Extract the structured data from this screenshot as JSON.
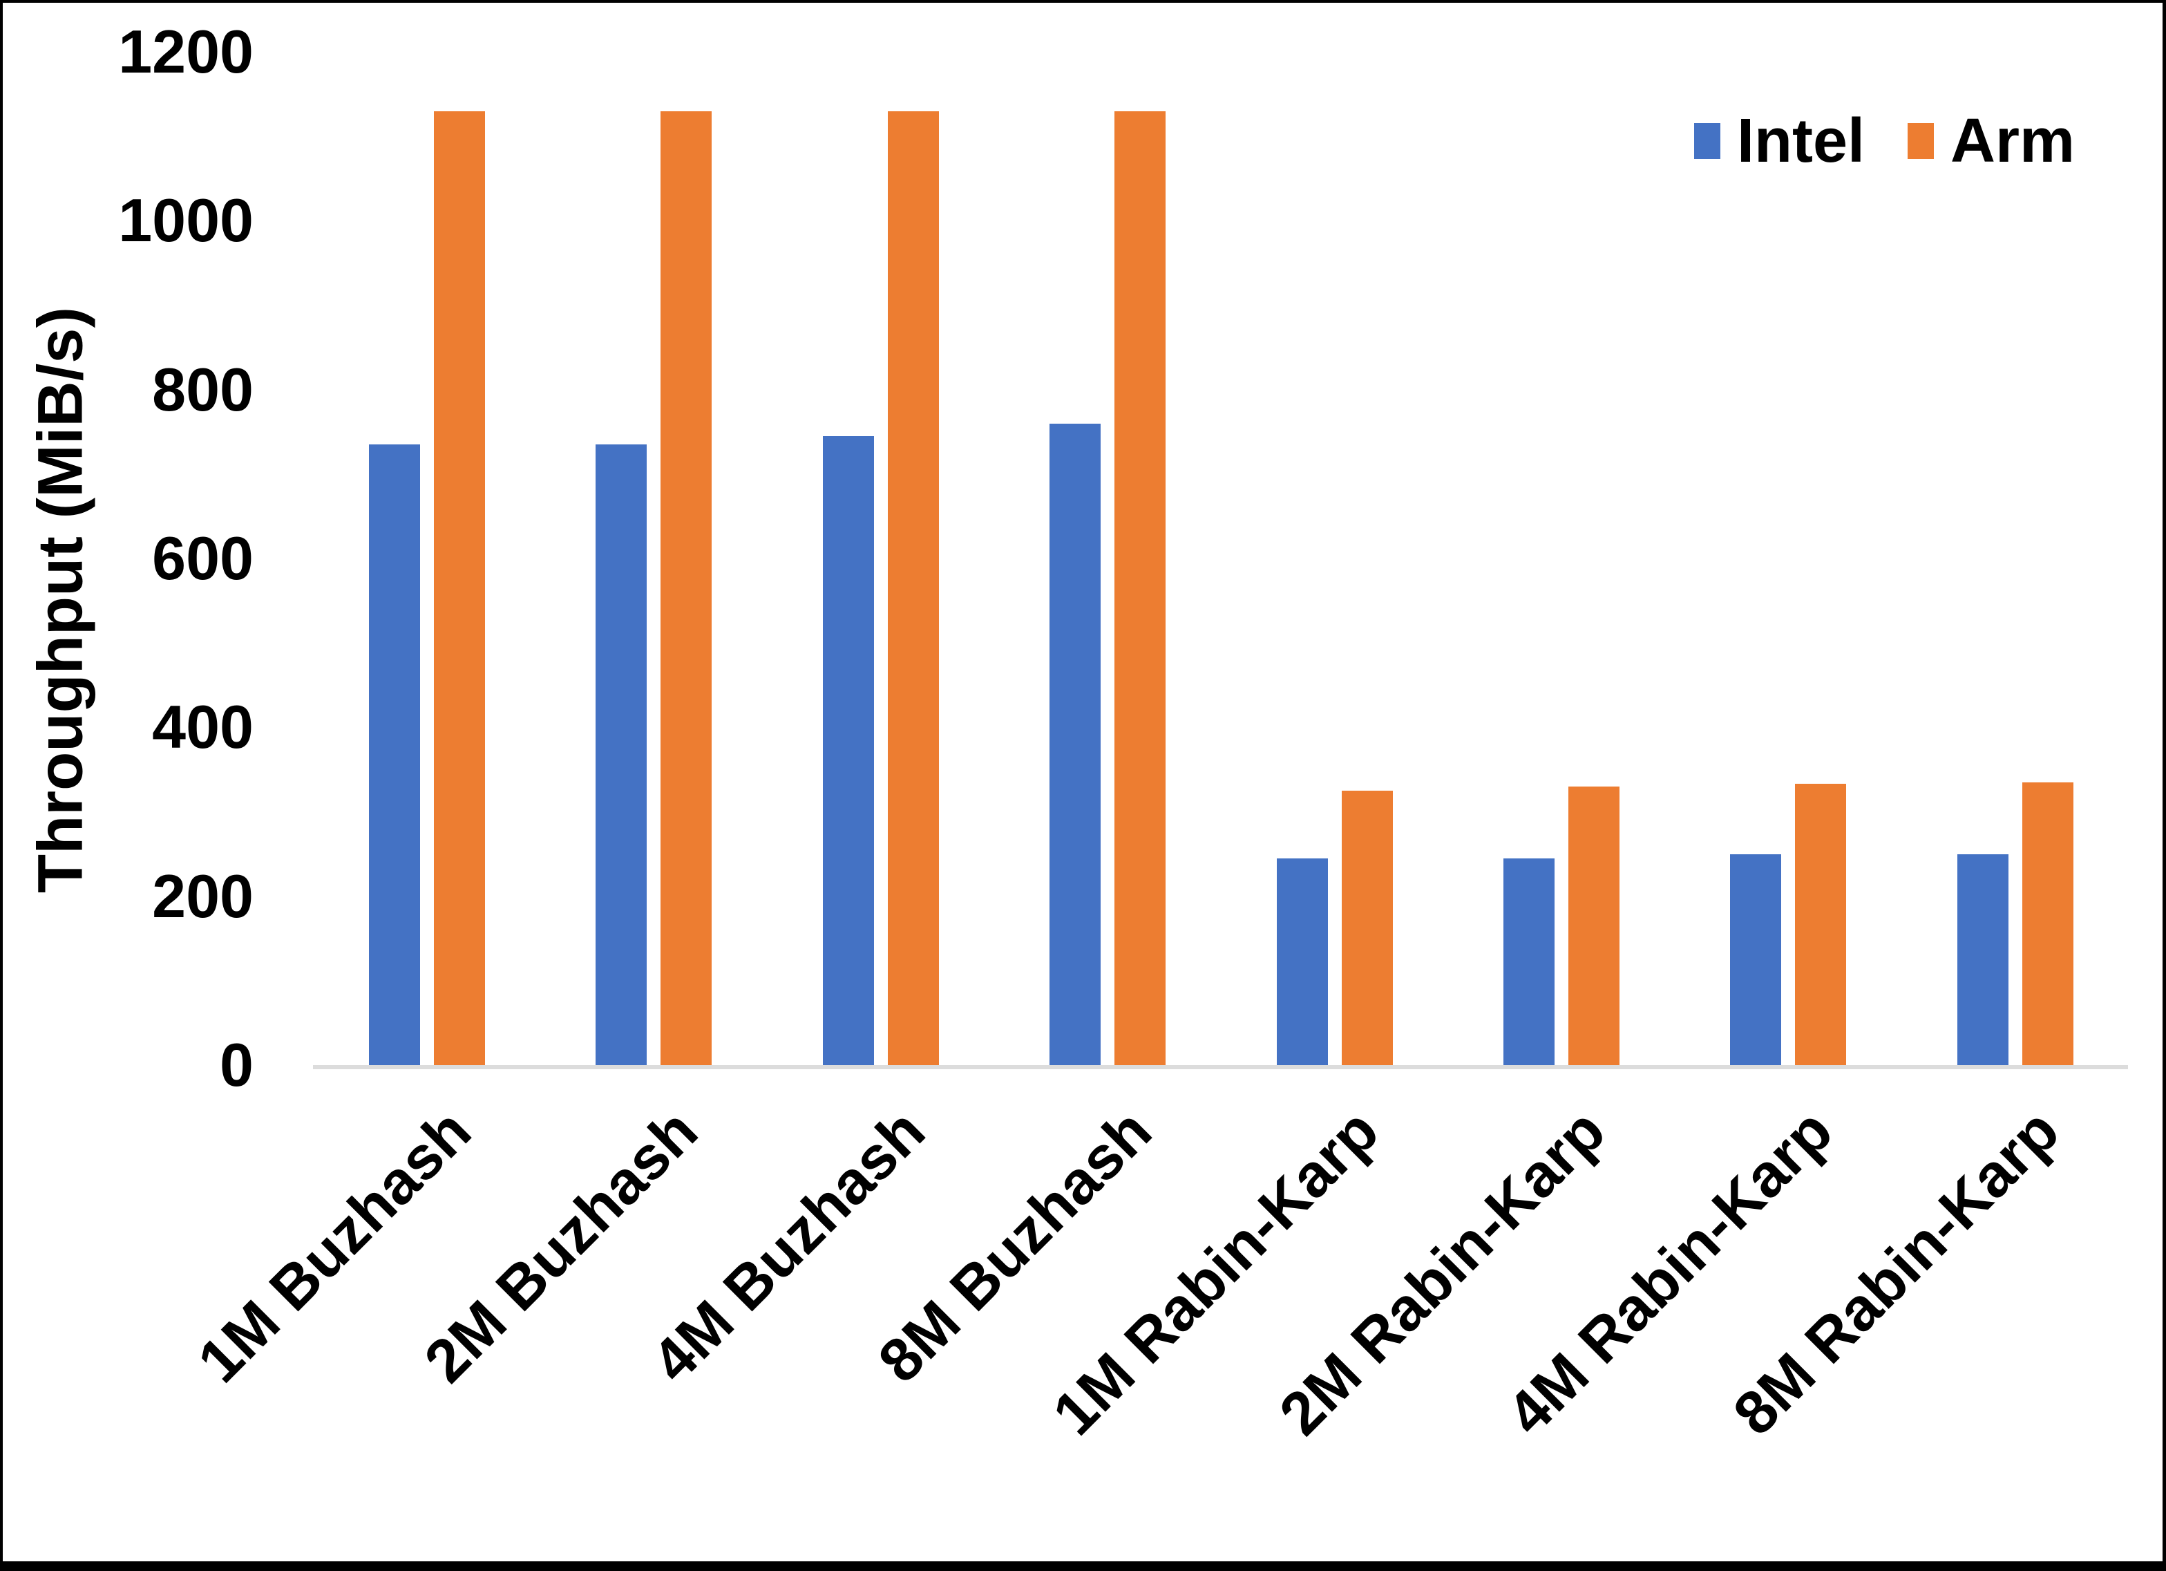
{
  "chart_data": {
    "type": "bar",
    "ylabel": "Throughput (MiB/s)",
    "xlabel": "",
    "ylim": [
      0,
      1200
    ],
    "yticks": [
      0,
      200,
      400,
      600,
      800,
      1000,
      1200
    ],
    "grid": false,
    "legend_position": "top-right",
    "categories": [
      "1M Buzhash",
      "2M Buzhash",
      "4M Buzhash",
      "8M Buzhash",
      "1M Rabin-Karp",
      "2M Rabin-Karp",
      "4M Rabin-Karp",
      "8M Rabin-Karp"
    ],
    "series": [
      {
        "name": "Intel",
        "color": "#4472C4",
        "values": [
          735,
          735,
          745,
          760,
          245,
          245,
          250,
          250
        ]
      },
      {
        "name": "Arm",
        "color": "#ED7D31",
        "values": [
          1130,
          1130,
          1130,
          1130,
          325,
          330,
          333,
          335
        ]
      }
    ],
    "axis_line_color": "#DCDCDC",
    "text_color": "#000000",
    "background_color": "#FFFFFF",
    "frame_color": "#000000"
  }
}
